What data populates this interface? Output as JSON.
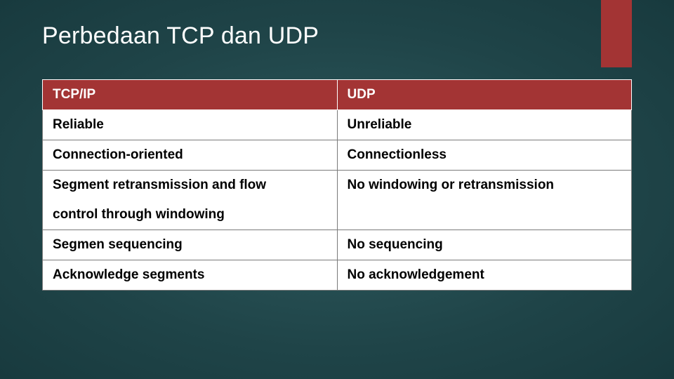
{
  "title": "Perbedaan TCP dan UDP",
  "accent_color": "#a33434",
  "header_bg": "#a33434",
  "header_text_color": "#ffffff",
  "cell_bg": "#ffffff",
  "cell_text_color": "#000000",
  "cell_border_color": "#7a7a7a",
  "title_color": "#ffffff",
  "title_fontsize": 34,
  "cell_fontsize": 19,
  "table": {
    "columns": [
      "TCP/IP",
      "UDP"
    ],
    "rows": [
      [
        "Reliable",
        "Unreliable"
      ],
      [
        "Connection-oriented",
        "Connectionless"
      ],
      [
        "Segment retransmission and flow",
        "No windowing or retransmission"
      ],
      [
        "control through windowing",
        ""
      ],
      [
        "Segmen sequencing",
        "No sequencing"
      ],
      [
        "Acknowledge segments",
        "No acknowledgement"
      ]
    ]
  }
}
